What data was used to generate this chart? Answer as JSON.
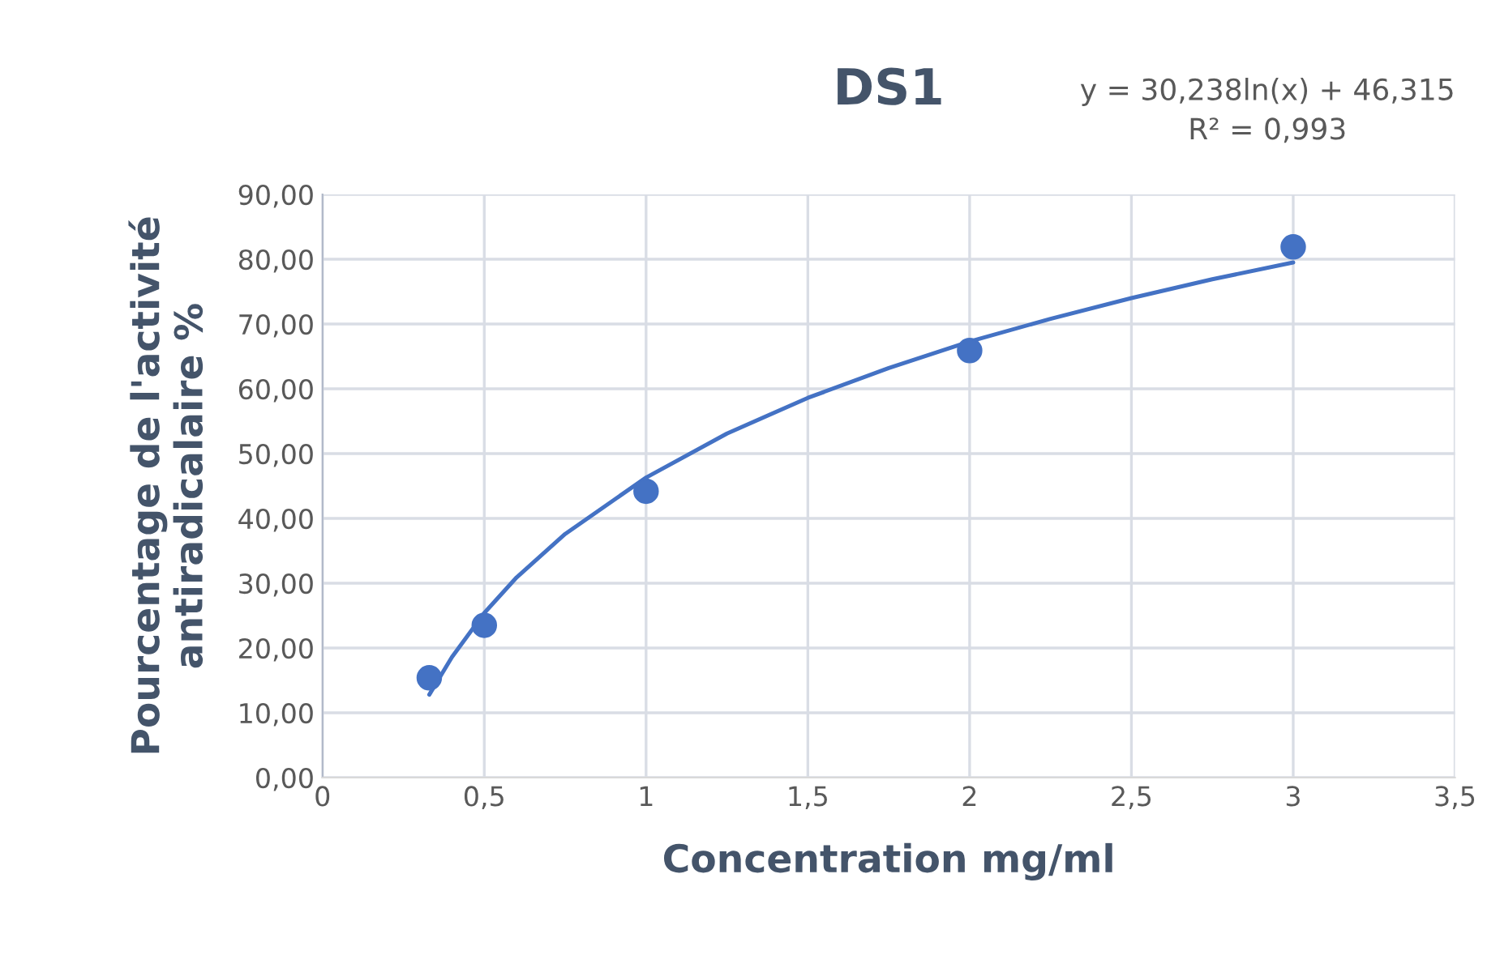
{
  "chart_data": {
    "type": "scatter",
    "title": "DS1",
    "xlabel": "Concentration mg/ml",
    "ylabel": "Pourcentage de l'activité\nantiradicalaire %",
    "annotations": [
      "y = 30,238ln(x) + 46,315\nR² = 0,993"
    ],
    "series": [
      {
        "color": "#4472c4",
        "marker": "circle",
        "x": [
          0.33,
          0.5,
          1,
          2,
          3
        ],
        "values": [
          15.4,
          23.5,
          44.2,
          65.9,
          81.9
        ]
      },
      {
        "type": "line",
        "color": "#4472c4",
        "line_style": "solid",
        "marker": "none",
        "x": [
          0.33,
          0.4,
          0.5,
          0.6,
          0.75,
          1,
          1.25,
          1.5,
          1.75,
          2,
          2.25,
          2.5,
          2.75,
          3
        ],
        "values": [
          12.8,
          18.6,
          25.4,
          30.9,
          37.6,
          46.3,
          53.1,
          58.6,
          63.2,
          67.3,
          70.8,
          74.0,
          76.9,
          79.5
        ]
      }
    ],
    "xlim": [
      0,
      3.5
    ],
    "xticks": [
      0,
      {
        "value": 0.5,
        "label": "0,5"
      },
      1,
      {
        "value": 1.5,
        "label": "1,5"
      },
      2,
      {
        "value": 2.5,
        "label": "2,5"
      },
      3,
      {
        "value": 3.5,
        "label": "3,5"
      }
    ],
    "ylim": [
      0,
      90
    ],
    "yticks": [
      {
        "value": 0,
        "label": "0,00"
      },
      {
        "value": 10,
        "label": "10,00"
      },
      {
        "value": 20,
        "label": "20,00"
      },
      {
        "value": 30,
        "label": "30,00"
      },
      {
        "value": 40,
        "label": "40,00"
      },
      {
        "value": 50,
        "label": "50,00"
      },
      {
        "value": 60,
        "label": "60,00"
      },
      {
        "value": 70,
        "label": "70,00"
      },
      {
        "value": 80,
        "label": "80,00"
      },
      {
        "value": 90,
        "label": "90,00"
      }
    ],
    "grid": true
  }
}
